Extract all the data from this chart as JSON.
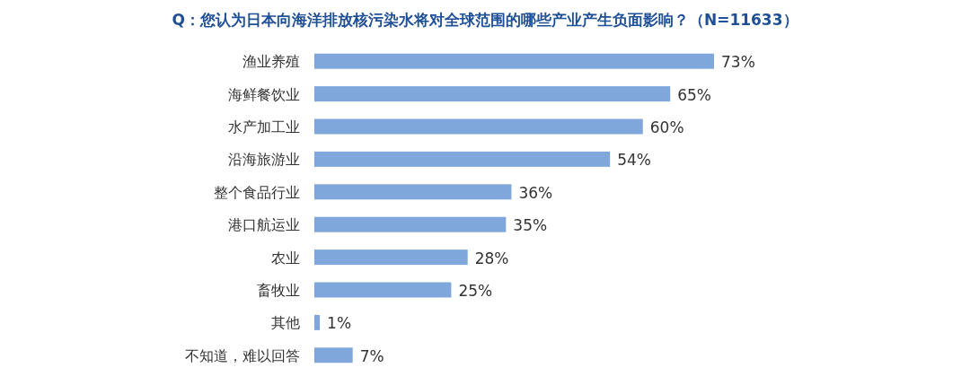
{
  "chart_data": {
    "type": "bar",
    "orientation": "horizontal",
    "title": "Q：您认为日本向海洋排放核污染水将对全球范围的哪些产业产生负面影响？（N=11633）",
    "categories": [
      "渔业养殖",
      "海鲜餐饮业",
      "水产加工业",
      "沿海旅游业",
      "整个食品行业",
      "港口航运业",
      "农业",
      "畜牧业",
      "其他",
      "不知道，难以回答"
    ],
    "values": [
      73,
      65,
      60,
      54,
      36,
      35,
      28,
      25,
      1,
      7
    ],
    "value_labels": [
      "73%",
      "65%",
      "60%",
      "54%",
      "36%",
      "35%",
      "28%",
      "25%",
      "1%",
      "7%"
    ],
    "color": "#7fa7dc"
  }
}
